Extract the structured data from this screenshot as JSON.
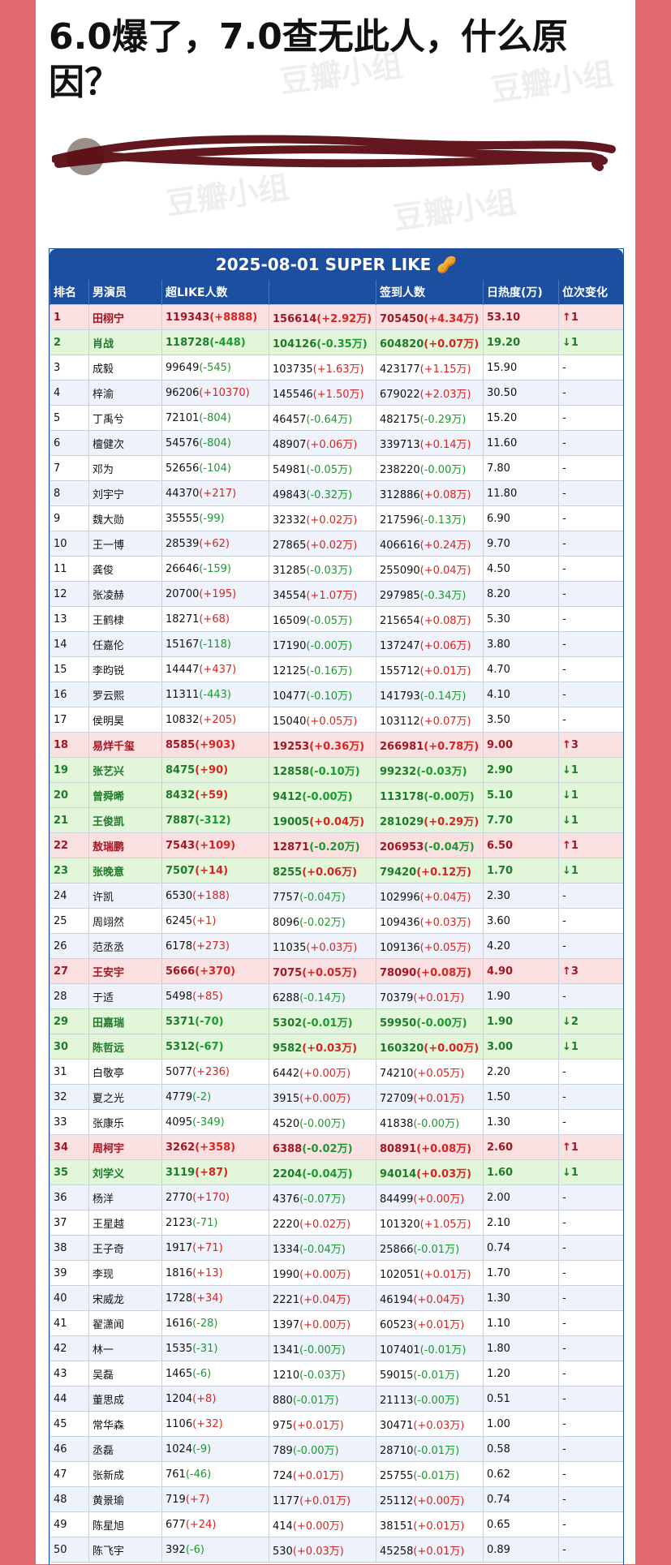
{
  "post": {
    "title": "6.0爆了，7.0查无此人，什么原因？"
  },
  "watermark": {
    "text": "豆瓣小组"
  },
  "table": {
    "banner": "2025-08-01 SUPER LIKE 🥜",
    "headers": [
      "排名",
      "男演员",
      "超LIKE人数",
      "",
      "签到人数",
      "日热度(万)",
      "位次变化"
    ],
    "rows": [
      {
        "rank": "1",
        "name": "田栩宁",
        "like": "119343",
        "like_d": "(+8888)",
        "sec": "156614",
        "sec_d": "(+2.92万)",
        "sign": "705450",
        "sign_d": "(+4.34万)",
        "heat": "53.10",
        "change": "↑1",
        "style": "up"
      },
      {
        "rank": "2",
        "name": "肖战",
        "like": "118728",
        "like_d": "(-448)",
        "sec": "104126",
        "sec_d": "(-0.35万)",
        "sign": "604820",
        "sign_d": "(+0.07万)",
        "heat": "19.20",
        "change": "↓1",
        "style": "down"
      },
      {
        "rank": "3",
        "name": "成毅",
        "like": "99649",
        "like_d": "(-545)",
        "sec": "103735",
        "sec_d": "(+1.63万)",
        "sign": "423177",
        "sign_d": "(+1.15万)",
        "heat": "15.90",
        "change": "-",
        "style": "plain"
      },
      {
        "rank": "4",
        "name": "梓渝",
        "like": "96206",
        "like_d": "(+10370)",
        "sec": "145546",
        "sec_d": "(+1.50万)",
        "sign": "679022",
        "sign_d": "(+2.03万)",
        "heat": "30.50",
        "change": "-",
        "style": "plain"
      },
      {
        "rank": "5",
        "name": "丁禹兮",
        "like": "72101",
        "like_d": "(-804)",
        "sec": "46457",
        "sec_d": "(-0.64万)",
        "sign": "482175",
        "sign_d": "(-0.29万)",
        "heat": "15.20",
        "change": "-",
        "style": "plain"
      },
      {
        "rank": "6",
        "name": "檀健次",
        "like": "54576",
        "like_d": "(-804)",
        "sec": "48907",
        "sec_d": "(+0.06万)",
        "sign": "339713",
        "sign_d": "(+0.14万)",
        "heat": "11.60",
        "change": "-",
        "style": "plain"
      },
      {
        "rank": "7",
        "name": "邓为",
        "like": "52656",
        "like_d": "(-104)",
        "sec": "54981",
        "sec_d": "(-0.05万)",
        "sign": "238220",
        "sign_d": "(-0.00万)",
        "heat": "7.80",
        "change": "-",
        "style": "plain"
      },
      {
        "rank": "8",
        "name": "刘宇宁",
        "like": "44370",
        "like_d": "(+217)",
        "sec": "49843",
        "sec_d": "(-0.32万)",
        "sign": "312886",
        "sign_d": "(+0.08万)",
        "heat": "11.80",
        "change": "-",
        "style": "plain"
      },
      {
        "rank": "9",
        "name": "魏大勋",
        "like": "35555",
        "like_d": "(-99)",
        "sec": "32332",
        "sec_d": "(+0.02万)",
        "sign": "217596",
        "sign_d": "(-0.13万)",
        "heat": "6.90",
        "change": "-",
        "style": "plain"
      },
      {
        "rank": "10",
        "name": "王一博",
        "like": "28539",
        "like_d": "(+62)",
        "sec": "27865",
        "sec_d": "(+0.02万)",
        "sign": "406616",
        "sign_d": "(+0.24万)",
        "heat": "9.70",
        "change": "-",
        "style": "plain"
      },
      {
        "rank": "11",
        "name": "龚俊",
        "like": "26646",
        "like_d": "(-159)",
        "sec": "31285",
        "sec_d": "(-0.03万)",
        "sign": "255090",
        "sign_d": "(+0.04万)",
        "heat": "4.50",
        "change": "-",
        "style": "plain"
      },
      {
        "rank": "12",
        "name": "张凌赫",
        "like": "20700",
        "like_d": "(+195)",
        "sec": "34554",
        "sec_d": "(+1.07万)",
        "sign": "297985",
        "sign_d": "(-0.34万)",
        "heat": "8.20",
        "change": "-",
        "style": "plain"
      },
      {
        "rank": "13",
        "name": "王鹤棣",
        "like": "18271",
        "like_d": "(+68)",
        "sec": "16509",
        "sec_d": "(-0.05万)",
        "sign": "215654",
        "sign_d": "(+0.08万)",
        "heat": "5.30",
        "change": "-",
        "style": "plain"
      },
      {
        "rank": "14",
        "name": "任嘉伦",
        "like": "15167",
        "like_d": "(-118)",
        "sec": "17190",
        "sec_d": "(-0.00万)",
        "sign": "137247",
        "sign_d": "(+0.06万)",
        "heat": "3.80",
        "change": "-",
        "style": "plain"
      },
      {
        "rank": "15",
        "name": "李昀锐",
        "like": "14447",
        "like_d": "(+437)",
        "sec": "12125",
        "sec_d": "(-0.16万)",
        "sign": "155712",
        "sign_d": "(+0.01万)",
        "heat": "4.70",
        "change": "-",
        "style": "plain"
      },
      {
        "rank": "16",
        "name": "罗云熙",
        "like": "11311",
        "like_d": "(-443)",
        "sec": "10477",
        "sec_d": "(-0.10万)",
        "sign": "141793",
        "sign_d": "(-0.14万)",
        "heat": "4.10",
        "change": "-",
        "style": "plain"
      },
      {
        "rank": "17",
        "name": "侯明昊",
        "like": "10832",
        "like_d": "(+205)",
        "sec": "15040",
        "sec_d": "(+0.05万)",
        "sign": "103112",
        "sign_d": "(+0.07万)",
        "heat": "3.50",
        "change": "-",
        "style": "plain"
      },
      {
        "rank": "18",
        "name": "易烊千玺",
        "like": "8585",
        "like_d": "(+903)",
        "sec": "19253",
        "sec_d": "(+0.36万)",
        "sign": "266981",
        "sign_d": "(+0.78万)",
        "heat": "9.00",
        "change": "↑3",
        "style": "up"
      },
      {
        "rank": "19",
        "name": "张艺兴",
        "like": "8475",
        "like_d": "(+90)",
        "sec": "12858",
        "sec_d": "(-0.10万)",
        "sign": "99232",
        "sign_d": "(-0.03万)",
        "heat": "2.90",
        "change": "↓1",
        "style": "down"
      },
      {
        "rank": "20",
        "name": "曾舜晞",
        "like": "8432",
        "like_d": "(+59)",
        "sec": "9412",
        "sec_d": "(-0.00万)",
        "sign": "113178",
        "sign_d": "(-0.00万)",
        "heat": "5.10",
        "change": "↓1",
        "style": "down"
      },
      {
        "rank": "21",
        "name": "王俊凯",
        "like": "7887",
        "like_d": "(-312)",
        "sec": "19005",
        "sec_d": "(+0.04万)",
        "sign": "281029",
        "sign_d": "(+0.29万)",
        "heat": "7.70",
        "change": "↓1",
        "style": "down"
      },
      {
        "rank": "22",
        "name": "敖瑞鹏",
        "like": "7543",
        "like_d": "(+109)",
        "sec": "12871",
        "sec_d": "(-0.20万)",
        "sign": "206953",
        "sign_d": "(-0.04万)",
        "heat": "6.50",
        "change": "↑1",
        "style": "up"
      },
      {
        "rank": "23",
        "name": "张晚意",
        "like": "7507",
        "like_d": "(+14)",
        "sec": "8255",
        "sec_d": "(+0.06万)",
        "sign": "79420",
        "sign_d": "(+0.12万)",
        "heat": "1.70",
        "change": "↓1",
        "style": "down"
      },
      {
        "rank": "24",
        "name": "许凯",
        "like": "6530",
        "like_d": "(+188)",
        "sec": "7757",
        "sec_d": "(-0.04万)",
        "sign": "102996",
        "sign_d": "(+0.04万)",
        "heat": "2.30",
        "change": "-",
        "style": "plain"
      },
      {
        "rank": "25",
        "name": "周翊然",
        "like": "6245",
        "like_d": "(+1)",
        "sec": "8096",
        "sec_d": "(-0.02万)",
        "sign": "109436",
        "sign_d": "(+0.03万)",
        "heat": "3.60",
        "change": "-",
        "style": "plain"
      },
      {
        "rank": "26",
        "name": "范丞丞",
        "like": "6178",
        "like_d": "(+273)",
        "sec": "11035",
        "sec_d": "(+0.03万)",
        "sign": "109136",
        "sign_d": "(+0.05万)",
        "heat": "4.20",
        "change": "-",
        "style": "plain"
      },
      {
        "rank": "27",
        "name": "王安宇",
        "like": "5666",
        "like_d": "(+370)",
        "sec": "7075",
        "sec_d": "(+0.05万)",
        "sign": "78090",
        "sign_d": "(+0.08万)",
        "heat": "4.90",
        "change": "↑3",
        "style": "up"
      },
      {
        "rank": "28",
        "name": "于适",
        "like": "5498",
        "like_d": "(+85)",
        "sec": "6288",
        "sec_d": "(-0.14万)",
        "sign": "70379",
        "sign_d": "(+0.01万)",
        "heat": "1.90",
        "change": "-",
        "style": "plain"
      },
      {
        "rank": "29",
        "name": "田嘉瑞",
        "like": "5371",
        "like_d": "(-70)",
        "sec": "5302",
        "sec_d": "(-0.01万)",
        "sign": "59950",
        "sign_d": "(-0.00万)",
        "heat": "1.90",
        "change": "↓2",
        "style": "down"
      },
      {
        "rank": "30",
        "name": "陈哲远",
        "like": "5312",
        "like_d": "(-67)",
        "sec": "9582",
        "sec_d": "(+0.03万)",
        "sign": "160320",
        "sign_d": "(+0.00万)",
        "heat": "3.00",
        "change": "↓1",
        "style": "down"
      },
      {
        "rank": "31",
        "name": "白敬亭",
        "like": "5077",
        "like_d": "(+236)",
        "sec": "6442",
        "sec_d": "(+0.00万)",
        "sign": "74210",
        "sign_d": "(+0.05万)",
        "heat": "2.20",
        "change": "-",
        "style": "plain"
      },
      {
        "rank": "32",
        "name": "夏之光",
        "like": "4779",
        "like_d": "(-2)",
        "sec": "3915",
        "sec_d": "(+0.00万)",
        "sign": "72709",
        "sign_d": "(+0.01万)",
        "heat": "1.50",
        "change": "-",
        "style": "plain"
      },
      {
        "rank": "33",
        "name": "张康乐",
        "like": "4095",
        "like_d": "(-349)",
        "sec": "4520",
        "sec_d": "(-0.00万)",
        "sign": "41838",
        "sign_d": "(-0.00万)",
        "heat": "1.30",
        "change": "-",
        "style": "plain"
      },
      {
        "rank": "34",
        "name": "周柯宇",
        "like": "3262",
        "like_d": "(+358)",
        "sec": "6388",
        "sec_d": "(-0.02万)",
        "sign": "80891",
        "sign_d": "(+0.08万)",
        "heat": "2.60",
        "change": "↑1",
        "style": "up"
      },
      {
        "rank": "35",
        "name": "刘学义",
        "like": "3119",
        "like_d": "(+87)",
        "sec": "2204",
        "sec_d": "(-0.04万)",
        "sign": "94014",
        "sign_d": "(+0.03万)",
        "heat": "1.60",
        "change": "↓1",
        "style": "down"
      },
      {
        "rank": "36",
        "name": "杨洋",
        "like": "2770",
        "like_d": "(+170)",
        "sec": "4376",
        "sec_d": "(-0.07万)",
        "sign": "84499",
        "sign_d": "(+0.00万)",
        "heat": "2.00",
        "change": "-",
        "style": "plain"
      },
      {
        "rank": "37",
        "name": "王星越",
        "like": "2123",
        "like_d": "(-71)",
        "sec": "2220",
        "sec_d": "(+0.02万)",
        "sign": "101320",
        "sign_d": "(+1.05万)",
        "heat": "2.10",
        "change": "-",
        "style": "plain"
      },
      {
        "rank": "38",
        "name": "王子奇",
        "like": "1917",
        "like_d": "(+71)",
        "sec": "1334",
        "sec_d": "(-0.04万)",
        "sign": "25866",
        "sign_d": "(-0.01万)",
        "heat": "0.74",
        "change": "-",
        "style": "plain"
      },
      {
        "rank": "39",
        "name": "李现",
        "like": "1816",
        "like_d": "(+13)",
        "sec": "1990",
        "sec_d": "(+0.00万)",
        "sign": "102051",
        "sign_d": "(+0.01万)",
        "heat": "1.70",
        "change": "-",
        "style": "plain"
      },
      {
        "rank": "40",
        "name": "宋威龙",
        "like": "1728",
        "like_d": "(+34)",
        "sec": "2221",
        "sec_d": "(+0.04万)",
        "sign": "46194",
        "sign_d": "(+0.04万)",
        "heat": "1.30",
        "change": "-",
        "style": "plain"
      },
      {
        "rank": "41",
        "name": "翟潇闻",
        "like": "1616",
        "like_d": "(-28)",
        "sec": "1397",
        "sec_d": "(+0.00万)",
        "sign": "60523",
        "sign_d": "(+0.01万)",
        "heat": "1.10",
        "change": "-",
        "style": "plain"
      },
      {
        "rank": "42",
        "name": "林一",
        "like": "1535",
        "like_d": "(-31)",
        "sec": "1341",
        "sec_d": "(-0.00万)",
        "sign": "107401",
        "sign_d": "(-0.01万)",
        "heat": "1.80",
        "change": "-",
        "style": "plain"
      },
      {
        "rank": "43",
        "name": "吴磊",
        "like": "1465",
        "like_d": "(-6)",
        "sec": "1210",
        "sec_d": "(-0.03万)",
        "sign": "59015",
        "sign_d": "(-0.01万)",
        "heat": "1.20",
        "change": "-",
        "style": "plain"
      },
      {
        "rank": "44",
        "name": "董思成",
        "like": "1204",
        "like_d": "(+8)",
        "sec": "880",
        "sec_d": "(-0.01万)",
        "sign": "21113",
        "sign_d": "(-0.00万)",
        "heat": "0.51",
        "change": "-",
        "style": "plain"
      },
      {
        "rank": "45",
        "name": "常华森",
        "like": "1106",
        "like_d": "(+32)",
        "sec": "975",
        "sec_d": "(+0.01万)",
        "sign": "30471",
        "sign_d": "(+0.03万)",
        "heat": "1.00",
        "change": "-",
        "style": "plain"
      },
      {
        "rank": "46",
        "name": "丞磊",
        "like": "1024",
        "like_d": "(-9)",
        "sec": "789",
        "sec_d": "(-0.00万)",
        "sign": "28710",
        "sign_d": "(-0.01万)",
        "heat": "0.58",
        "change": "-",
        "style": "plain"
      },
      {
        "rank": "47",
        "name": "张新成",
        "like": "761",
        "like_d": "(-46)",
        "sec": "724",
        "sec_d": "(+0.01万)",
        "sign": "25755",
        "sign_d": "(-0.01万)",
        "heat": "0.62",
        "change": "-",
        "style": "plain"
      },
      {
        "rank": "48",
        "name": "黄景瑜",
        "like": "719",
        "like_d": "(+7)",
        "sec": "1177",
        "sec_d": "(+0.01万)",
        "sign": "25112",
        "sign_d": "(+0.00万)",
        "heat": "0.74",
        "change": "-",
        "style": "plain"
      },
      {
        "rank": "49",
        "name": "陈星旭",
        "like": "677",
        "like_d": "(+24)",
        "sec": "414",
        "sec_d": "(+0.00万)",
        "sign": "38151",
        "sign_d": "(+0.01万)",
        "heat": "0.65",
        "change": "-",
        "style": "plain"
      },
      {
        "rank": "50",
        "name": "陈飞宇",
        "like": "392",
        "like_d": "(-6)",
        "sec": "530",
        "sec_d": "(+0.03万)",
        "sign": "45258",
        "sign_d": "(+0.01万)",
        "heat": "0.89",
        "change": "-",
        "style": "plain"
      }
    ]
  }
}
